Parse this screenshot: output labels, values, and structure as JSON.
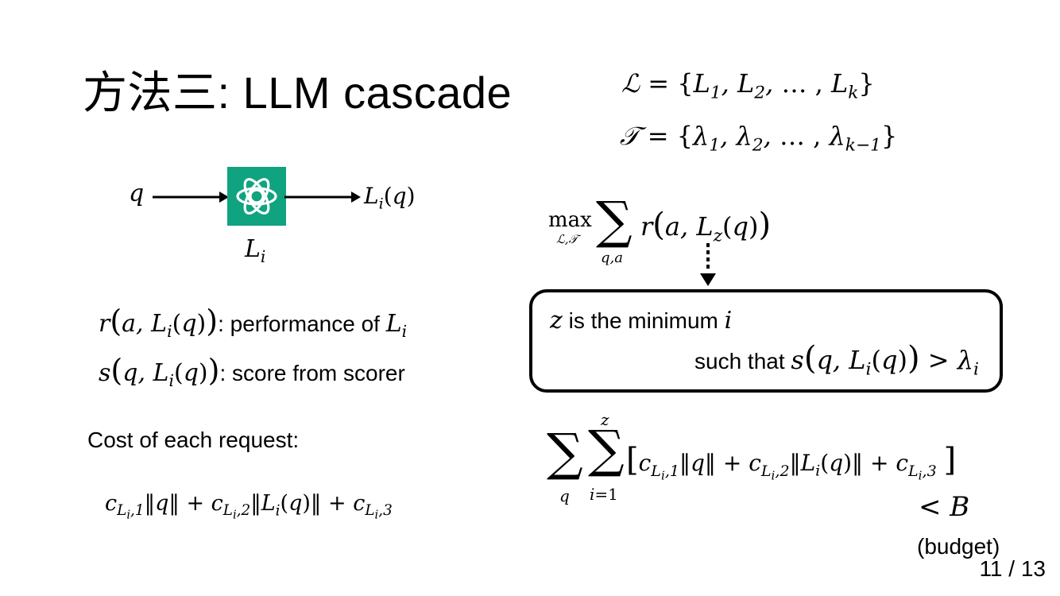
{
  "slide": {
    "title": "方法三: LLM cascade",
    "page_number": "11 / 13"
  },
  "diagram": {
    "input": "q",
    "model_label": "L_i",
    "output": "L_i(q)",
    "logo_icon": "openai-logo-icon",
    "logo_color": "#10a37f"
  },
  "definitions": {
    "r_text": ": performance of ",
    "s_text": ": score from scorer"
  },
  "cost": {
    "heading": "Cost of each request:"
  },
  "sets": {
    "L_set": "ℒ = {L1, L2, … , Lk}",
    "T_set": "𝒯 = {λ1, λ2, … , λk−1}"
  },
  "objective": {
    "max_label": "max",
    "max_sub": "ℒ,𝒯"
  },
  "constraint_box": {
    "line1_text": " is the minimum ",
    "line2_text": "such that "
  },
  "budget": {
    "less_than": "< B",
    "label": "(budget)"
  }
}
